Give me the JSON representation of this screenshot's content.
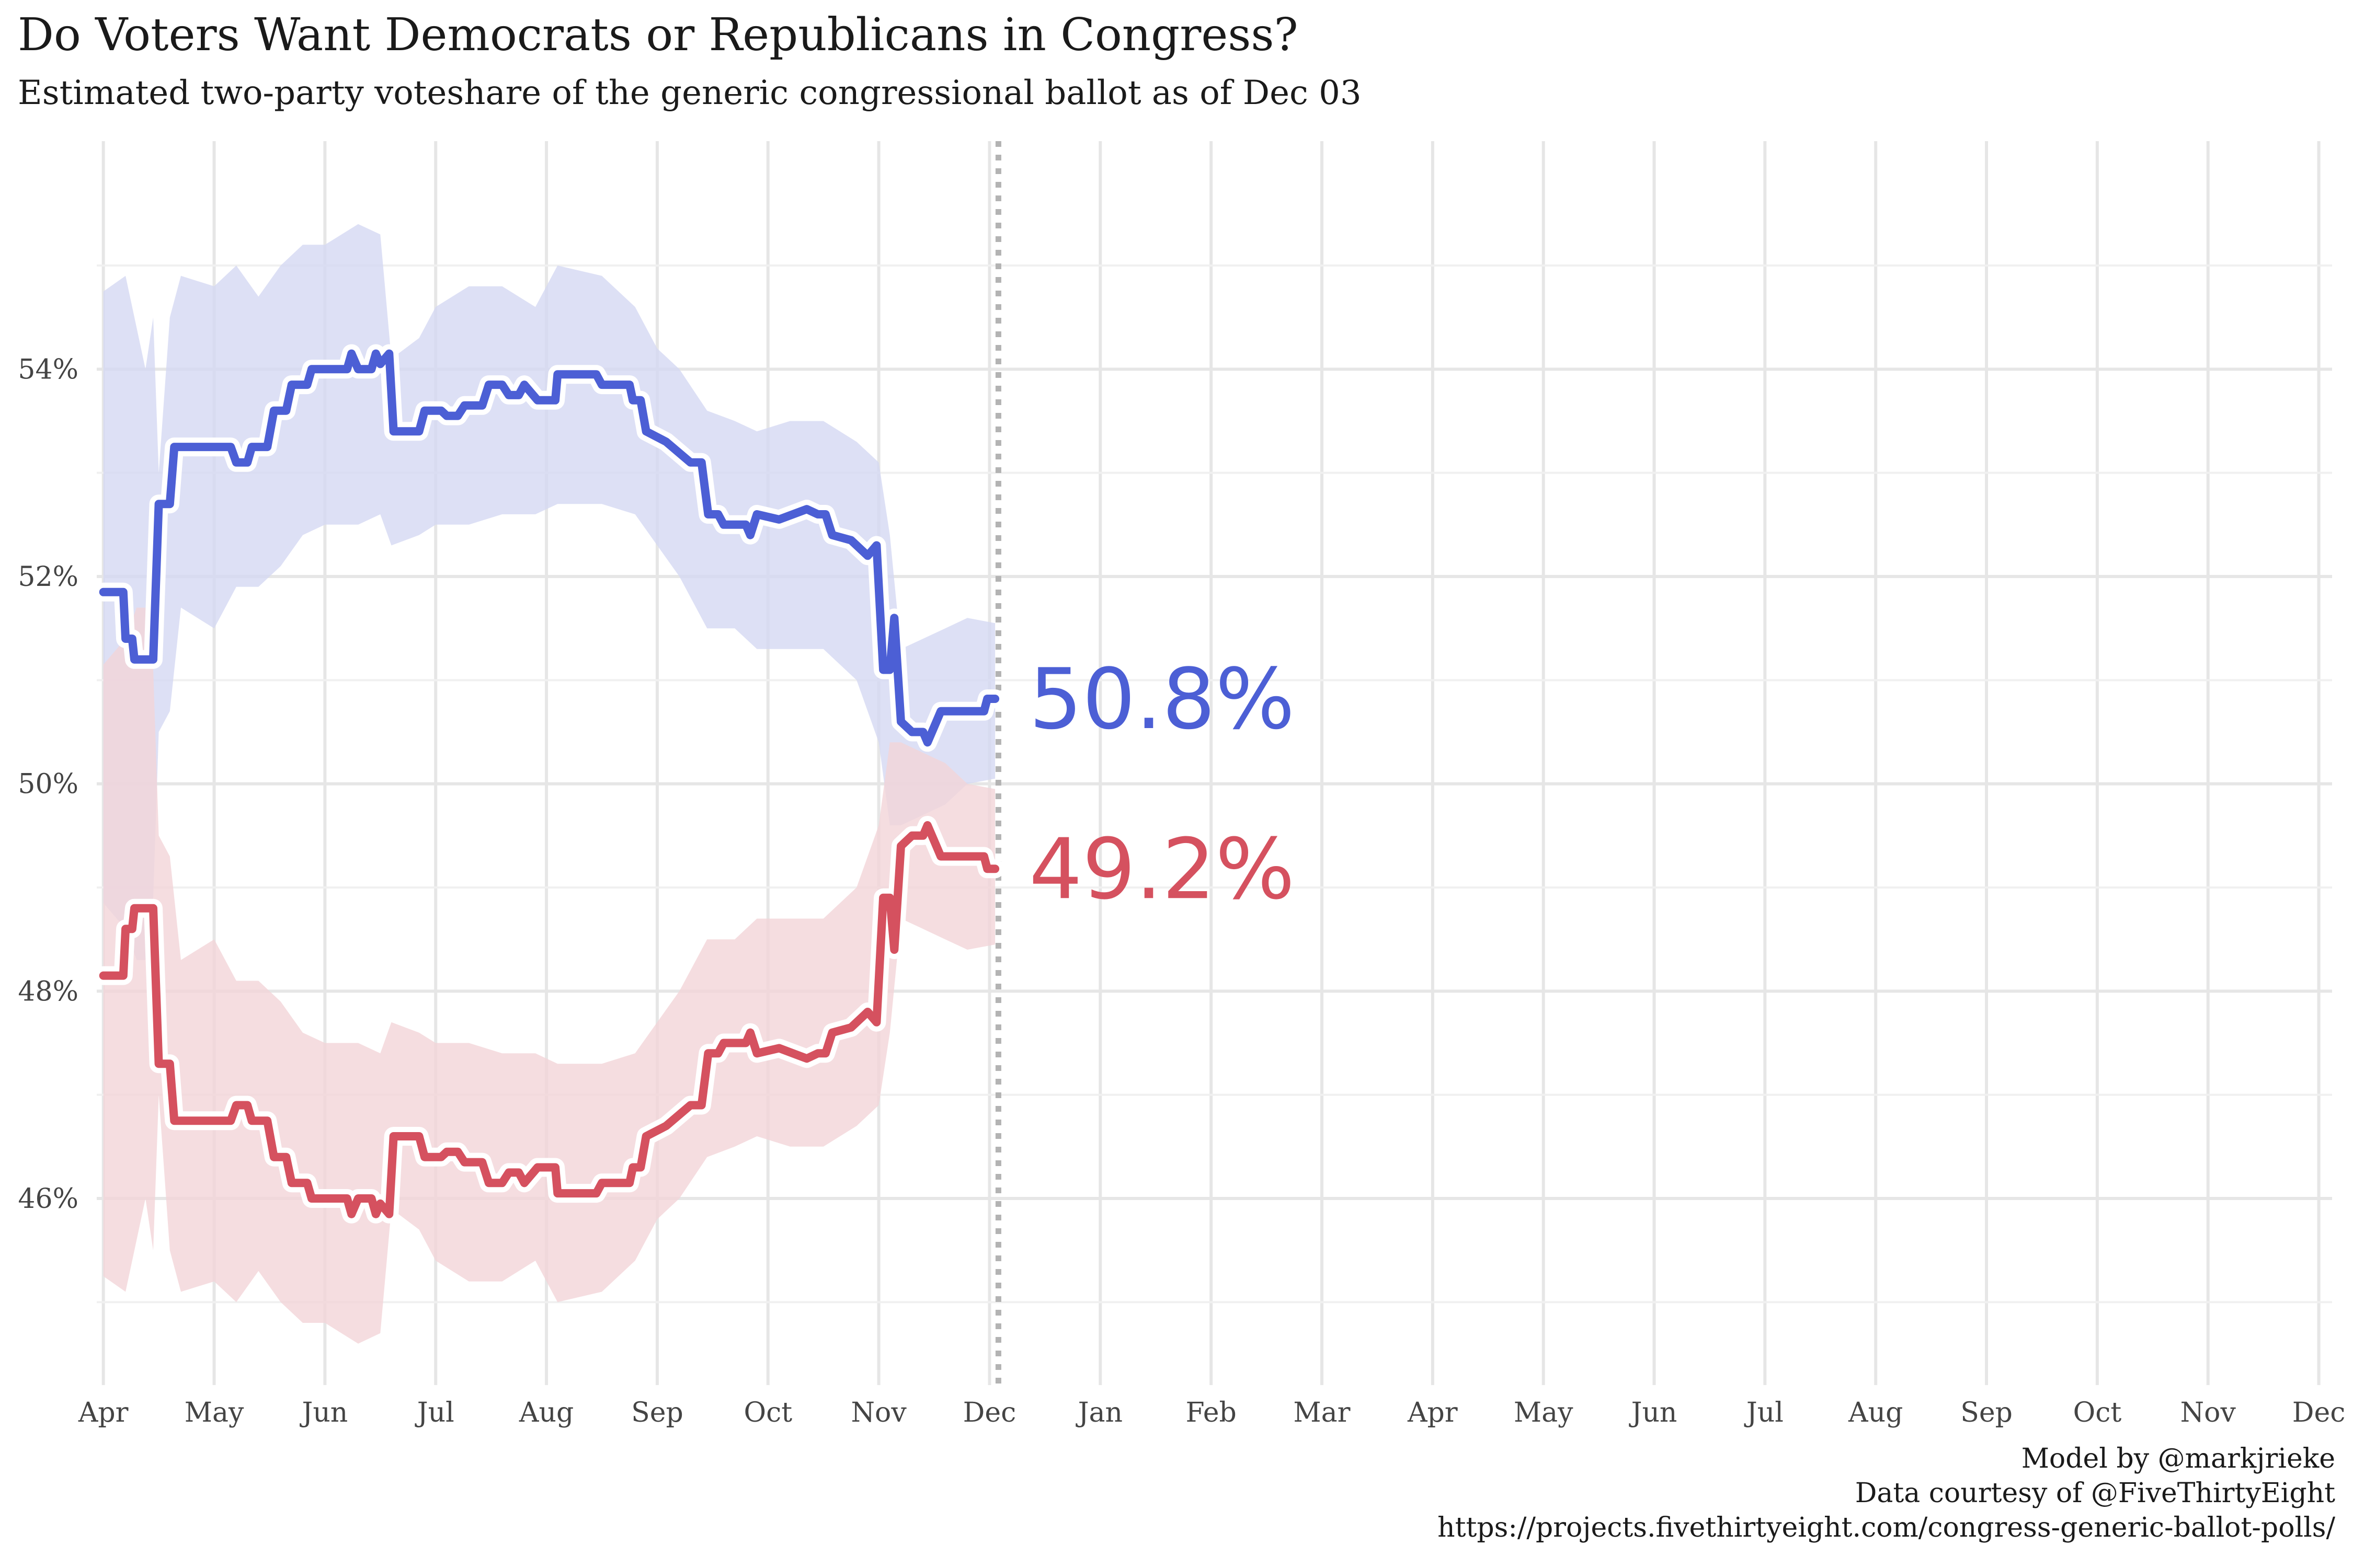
{
  "chart_data": {
    "type": "line",
    "title": "Do Voters Want Democrats or Republicans in Congress?",
    "subtitle": "Estimated two-party voteshare of the generic congressional ballot as of Dec 03",
    "x_tick_labels": [
      "Apr",
      "May",
      "Jun",
      "Jul",
      "Aug",
      "Sep",
      "Oct",
      "Nov",
      "Dec",
      "Jan",
      "Feb",
      "Mar",
      "Apr",
      "May",
      "Jun",
      "Jul",
      "Aug",
      "Sep",
      "Oct",
      "Nov",
      "Dec"
    ],
    "y_tick_labels": [
      "46%",
      "48%",
      "50%",
      "52%",
      "54%"
    ],
    "y_ticks": [
      46,
      48,
      50,
      52,
      54
    ],
    "ylim": [
      44.2,
      56.2
    ],
    "xlim": [
      -0.06,
      20.12
    ],
    "grid": true,
    "current_marker_x": 8.08,
    "series": [
      {
        "color": "#4c5fd5",
        "band_color": "#d4d8f2",
        "end_label": "50.8%",
        "points": [
          [
            0,
            51.85
          ],
          [
            0.18,
            51.85
          ],
          [
            0.2,
            51.4
          ],
          [
            0.26,
            51.4
          ],
          [
            0.28,
            51.2
          ],
          [
            0.45,
            51.2
          ],
          [
            0.5,
            52.7
          ],
          [
            0.6,
            52.7
          ],
          [
            0.64,
            53.25
          ],
          [
            1.15,
            53.25
          ],
          [
            1.2,
            53.1
          ],
          [
            1.3,
            53.1
          ],
          [
            1.34,
            53.25
          ],
          [
            1.48,
            53.25
          ],
          [
            1.54,
            53.6
          ],
          [
            1.65,
            53.6
          ],
          [
            1.7,
            53.85
          ],
          [
            1.84,
            53.85
          ],
          [
            1.88,
            54.0
          ],
          [
            2.2,
            54.0
          ],
          [
            2.24,
            54.15
          ],
          [
            2.3,
            54.0
          ],
          [
            2.42,
            54.0
          ],
          [
            2.46,
            54.15
          ],
          [
            2.5,
            54.05
          ],
          [
            2.58,
            54.15
          ],
          [
            2.62,
            53.4
          ],
          [
            2.85,
            53.4
          ],
          [
            2.9,
            53.6
          ],
          [
            3.05,
            53.6
          ],
          [
            3.1,
            53.55
          ],
          [
            3.2,
            53.55
          ],
          [
            3.26,
            53.65
          ],
          [
            3.42,
            53.65
          ],
          [
            3.48,
            53.85
          ],
          [
            3.6,
            53.85
          ],
          [
            3.66,
            53.75
          ],
          [
            3.75,
            53.75
          ],
          [
            3.8,
            53.85
          ],
          [
            3.92,
            53.7
          ],
          [
            4.08,
            53.7
          ],
          [
            4.1,
            53.95
          ],
          [
            4.45,
            53.95
          ],
          [
            4.5,
            53.85
          ],
          [
            4.75,
            53.85
          ],
          [
            4.78,
            53.7
          ],
          [
            4.85,
            53.7
          ],
          [
            4.9,
            53.4
          ],
          [
            5.08,
            53.3
          ],
          [
            5.3,
            53.1
          ],
          [
            5.4,
            53.1
          ],
          [
            5.46,
            52.6
          ],
          [
            5.55,
            52.6
          ],
          [
            5.6,
            52.5
          ],
          [
            5.8,
            52.5
          ],
          [
            5.84,
            52.4
          ],
          [
            5.9,
            52.6
          ],
          [
            6.1,
            52.55
          ],
          [
            6.35,
            52.65
          ],
          [
            6.45,
            52.6
          ],
          [
            6.52,
            52.6
          ],
          [
            6.58,
            52.4
          ],
          [
            6.75,
            52.35
          ],
          [
            6.9,
            52.2
          ],
          [
            6.98,
            52.3
          ],
          [
            7.04,
            51.1
          ],
          [
            7.1,
            51.1
          ],
          [
            7.14,
            51.6
          ],
          [
            7.2,
            50.6
          ],
          [
            7.3,
            50.5
          ],
          [
            7.4,
            50.5
          ],
          [
            7.44,
            50.4
          ],
          [
            7.52,
            50.6
          ],
          [
            7.56,
            50.7
          ],
          [
            7.95,
            50.7
          ],
          [
            7.98,
            50.82
          ],
          [
            8.05,
            50.82
          ]
        ],
        "band": [
          [
            0,
            54.75,
            48.85
          ],
          [
            0.2,
            54.9,
            48.6
          ],
          [
            0.3,
            54.4,
            48.3
          ],
          [
            0.38,
            54.0,
            48.3
          ],
          [
            0.45,
            54.5,
            48.9
          ],
          [
            0.5,
            53.0,
            50.5
          ],
          [
            0.6,
            54.5,
            50.7
          ],
          [
            0.7,
            54.9,
            51.7
          ],
          [
            1.0,
            54.8,
            51.5
          ],
          [
            1.2,
            55.0,
            51.9
          ],
          [
            1.4,
            54.7,
            51.9
          ],
          [
            1.6,
            55.0,
            52.1
          ],
          [
            1.8,
            55.2,
            52.4
          ],
          [
            2.0,
            55.2,
            52.5
          ],
          [
            2.3,
            55.4,
            52.5
          ],
          [
            2.5,
            55.3,
            52.6
          ],
          [
            2.6,
            54.1,
            52.3
          ],
          [
            2.85,
            54.3,
            52.4
          ],
          [
            3.0,
            54.6,
            52.5
          ],
          [
            3.3,
            54.8,
            52.5
          ],
          [
            3.6,
            54.8,
            52.6
          ],
          [
            3.9,
            54.6,
            52.6
          ],
          [
            4.1,
            55.0,
            52.7
          ],
          [
            4.5,
            54.9,
            52.7
          ],
          [
            4.8,
            54.6,
            52.6
          ],
          [
            5.0,
            54.2,
            52.3
          ],
          [
            5.2,
            54.0,
            52.0
          ],
          [
            5.45,
            53.6,
            51.5
          ],
          [
            5.7,
            53.5,
            51.5
          ],
          [
            5.9,
            53.4,
            51.3
          ],
          [
            6.2,
            53.5,
            51.3
          ],
          [
            6.5,
            53.5,
            51.3
          ],
          [
            6.8,
            53.3,
            51.0
          ],
          [
            7.0,
            53.1,
            50.4
          ],
          [
            7.1,
            52.4,
            49.6
          ],
          [
            7.2,
            51.3,
            49.6
          ],
          [
            7.4,
            51.4,
            49.7
          ],
          [
            7.6,
            51.5,
            49.8
          ],
          [
            7.8,
            51.6,
            50.0
          ],
          [
            8.05,
            51.55,
            50.05
          ]
        ]
      },
      {
        "color": "#d5515f",
        "band_color": "#f2d5d8",
        "end_label": "49.2%",
        "points": [
          [
            0,
            48.15
          ],
          [
            0.18,
            48.15
          ],
          [
            0.2,
            48.6
          ],
          [
            0.26,
            48.6
          ],
          [
            0.28,
            48.8
          ],
          [
            0.45,
            48.8
          ],
          [
            0.5,
            47.3
          ],
          [
            0.6,
            47.3
          ],
          [
            0.64,
            46.75
          ],
          [
            1.15,
            46.75
          ],
          [
            1.2,
            46.9
          ],
          [
            1.3,
            46.9
          ],
          [
            1.34,
            46.75
          ],
          [
            1.48,
            46.75
          ],
          [
            1.54,
            46.4
          ],
          [
            1.65,
            46.4
          ],
          [
            1.7,
            46.15
          ],
          [
            1.84,
            46.15
          ],
          [
            1.88,
            46.0
          ],
          [
            2.2,
            46.0
          ],
          [
            2.24,
            45.85
          ],
          [
            2.3,
            46.0
          ],
          [
            2.42,
            46.0
          ],
          [
            2.46,
            45.85
          ],
          [
            2.5,
            45.95
          ],
          [
            2.58,
            45.85
          ],
          [
            2.62,
            46.6
          ],
          [
            2.85,
            46.6
          ],
          [
            2.9,
            46.4
          ],
          [
            3.05,
            46.4
          ],
          [
            3.1,
            46.45
          ],
          [
            3.2,
            46.45
          ],
          [
            3.26,
            46.35
          ],
          [
            3.42,
            46.35
          ],
          [
            3.48,
            46.15
          ],
          [
            3.6,
            46.15
          ],
          [
            3.66,
            46.25
          ],
          [
            3.75,
            46.25
          ],
          [
            3.8,
            46.15
          ],
          [
            3.92,
            46.3
          ],
          [
            4.08,
            46.3
          ],
          [
            4.1,
            46.05
          ],
          [
            4.45,
            46.05
          ],
          [
            4.5,
            46.15
          ],
          [
            4.75,
            46.15
          ],
          [
            4.78,
            46.3
          ],
          [
            4.85,
            46.3
          ],
          [
            4.9,
            46.6
          ],
          [
            5.08,
            46.7
          ],
          [
            5.3,
            46.9
          ],
          [
            5.4,
            46.9
          ],
          [
            5.46,
            47.4
          ],
          [
            5.55,
            47.4
          ],
          [
            5.6,
            47.5
          ],
          [
            5.8,
            47.5
          ],
          [
            5.84,
            47.6
          ],
          [
            5.9,
            47.4
          ],
          [
            6.1,
            47.45
          ],
          [
            6.35,
            47.35
          ],
          [
            6.45,
            47.4
          ],
          [
            6.52,
            47.4
          ],
          [
            6.58,
            47.6
          ],
          [
            6.75,
            47.65
          ],
          [
            6.9,
            47.8
          ],
          [
            6.98,
            47.7
          ],
          [
            7.04,
            48.9
          ],
          [
            7.1,
            48.9
          ],
          [
            7.14,
            48.4
          ],
          [
            7.2,
            49.4
          ],
          [
            7.3,
            49.5
          ],
          [
            7.4,
            49.5
          ],
          [
            7.44,
            49.6
          ],
          [
            7.52,
            49.4
          ],
          [
            7.56,
            49.3
          ],
          [
            7.95,
            49.3
          ],
          [
            7.98,
            49.18
          ],
          [
            8.05,
            49.18
          ]
        ],
        "band": [
          [
            0,
            51.15,
            45.25
          ],
          [
            0.2,
            51.4,
            45.1
          ],
          [
            0.3,
            51.7,
            45.6
          ],
          [
            0.38,
            51.7,
            46.0
          ],
          [
            0.45,
            51.1,
            45.5
          ],
          [
            0.5,
            49.5,
            47.0
          ],
          [
            0.6,
            49.3,
            45.5
          ],
          [
            0.7,
            48.3,
            45.1
          ],
          [
            1.0,
            48.5,
            45.2
          ],
          [
            1.2,
            48.1,
            45.0
          ],
          [
            1.4,
            48.1,
            45.3
          ],
          [
            1.6,
            47.9,
            45.0
          ],
          [
            1.8,
            47.6,
            44.8
          ],
          [
            2.0,
            47.5,
            44.8
          ],
          [
            2.3,
            47.5,
            44.6
          ],
          [
            2.5,
            47.4,
            44.7
          ],
          [
            2.6,
            47.7,
            45.9
          ],
          [
            2.85,
            47.6,
            45.7
          ],
          [
            3.0,
            47.5,
            45.4
          ],
          [
            3.3,
            47.5,
            45.2
          ],
          [
            3.6,
            47.4,
            45.2
          ],
          [
            3.9,
            47.4,
            45.4
          ],
          [
            4.1,
            47.3,
            45.0
          ],
          [
            4.5,
            47.3,
            45.1
          ],
          [
            4.8,
            47.4,
            45.4
          ],
          [
            5.0,
            47.7,
            45.8
          ],
          [
            5.2,
            48.0,
            46.0
          ],
          [
            5.45,
            48.5,
            46.4
          ],
          [
            5.7,
            48.5,
            46.5
          ],
          [
            5.9,
            48.7,
            46.6
          ],
          [
            6.2,
            48.7,
            46.5
          ],
          [
            6.5,
            48.7,
            46.5
          ],
          [
            6.8,
            49.0,
            46.7
          ],
          [
            7.0,
            49.6,
            46.9
          ],
          [
            7.1,
            50.4,
            47.6
          ],
          [
            7.2,
            50.4,
            48.7
          ],
          [
            7.4,
            50.3,
            48.6
          ],
          [
            7.6,
            50.2,
            48.5
          ],
          [
            7.8,
            50.0,
            48.4
          ],
          [
            8.05,
            49.95,
            48.45
          ]
        ]
      }
    ]
  },
  "credits": {
    "line1": "Model by @markjrieke",
    "line2": "Data courtesy of @FiveThirtyEight",
    "line3": "https://projects.fivethirtyeight.com/congress-generic-ballot-polls/"
  }
}
